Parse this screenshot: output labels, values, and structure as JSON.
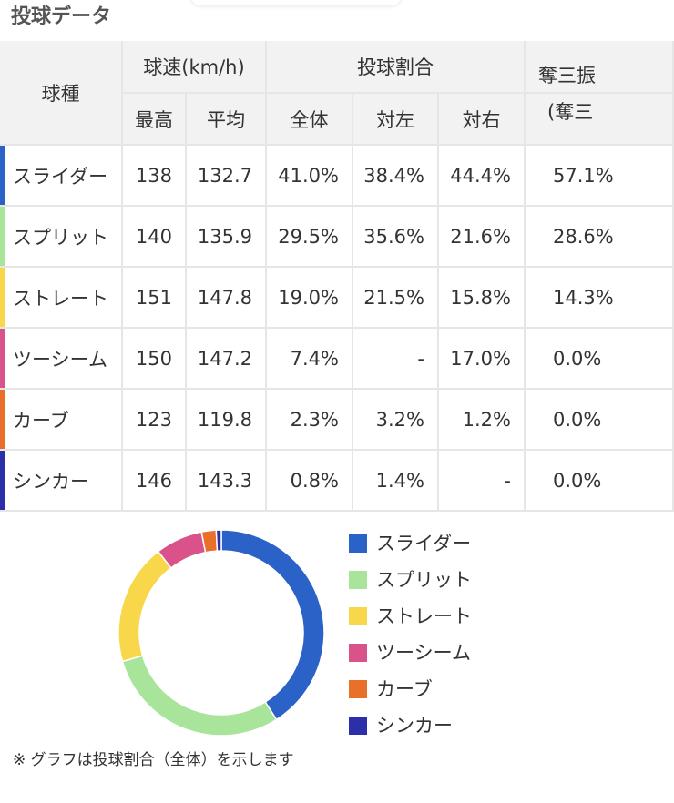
{
  "header": {
    "title": "投球データ"
  },
  "table": {
    "head": {
      "pitch": "球種",
      "speed": "球速(km/h)",
      "ratio": "投球割合",
      "k": "奪三振",
      "k_sub": "(奪三",
      "max": "最高",
      "avg": "平均",
      "all": "全体",
      "left": "対左",
      "right": "対右"
    },
    "rows": [
      {
        "name": "スライダー",
        "color": "#2a62c8",
        "cells": [
          "138",
          "132.7",
          "41.0%",
          "38.4%",
          "44.4%",
          "57.1%"
        ]
      },
      {
        "name": "スプリット",
        "color": "#a8e49a",
        "cells": [
          "140",
          "135.9",
          "29.5%",
          "35.6%",
          "21.6%",
          "28.6%"
        ]
      },
      {
        "name": "ストレート",
        "color": "#f8d74a",
        "cells": [
          "151",
          "147.8",
          "19.0%",
          "21.5%",
          "15.8%",
          "14.3%"
        ]
      },
      {
        "name": "ツーシーム",
        "color": "#d9528a",
        "cells": [
          "150",
          "147.2",
          "7.4%",
          "-",
          "17.0%",
          "0.0%"
        ]
      },
      {
        "name": "カーブ",
        "color": "#e8702a",
        "cells": [
          "123",
          "119.8",
          "2.3%",
          "3.2%",
          "1.2%",
          "0.0%"
        ]
      },
      {
        "name": "シンカー",
        "color": "#2b2fa8",
        "cells": [
          "146",
          "143.3",
          "0.8%",
          "1.4%",
          "-",
          "0.0%"
        ]
      }
    ]
  },
  "chart_data": {
    "type": "donut",
    "categories": [
      "スライダー",
      "スプリット",
      "ストレート",
      "ツーシーム",
      "カーブ",
      "シンカー"
    ],
    "values": [
      41.0,
      29.5,
      19.0,
      7.4,
      2.3,
      0.8
    ],
    "colors": [
      "#2a62c8",
      "#a8e49a",
      "#f8d74a",
      "#d9528a",
      "#e8702a",
      "#2b2fa8"
    ]
  },
  "note": "※ グラフは投球割合（全体）を示します"
}
